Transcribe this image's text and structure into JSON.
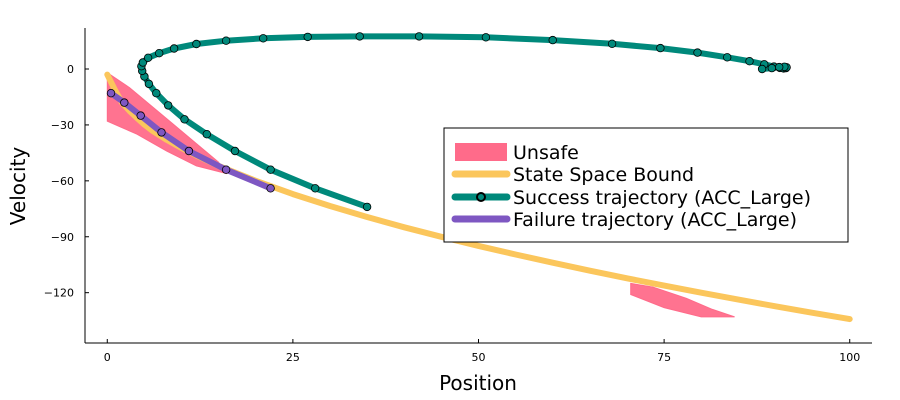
{
  "chart_data": {
    "type": "line",
    "xlabel": "Position",
    "ylabel": "Velocity",
    "xlim": [
      -3,
      103
    ],
    "ylim": [
      -147,
      22
    ],
    "xticks": [
      0,
      25,
      50,
      75,
      100
    ],
    "xtick_labels": [
      "0",
      "25",
      "50",
      "75",
      "100"
    ],
    "yticks": [
      0,
      -30,
      -60,
      -90,
      -120
    ],
    "ytick_labels": [
      "0",
      "−30",
      "−60",
      "−90",
      "−120"
    ],
    "grid": false,
    "legend_position": "right",
    "legend": [
      {
        "label": "Unsafe",
        "kind": "patch",
        "color": "#ff6b8a"
      },
      {
        "label": "State Space Bound",
        "kind": "line",
        "color": "#fbc65c"
      },
      {
        "label": "Success trajectory (ACC_Large)",
        "kind": "line-marker",
        "color": "#00897b"
      },
      {
        "label": "Failure trajectory (ACC_Large)",
        "kind": "line",
        "color": "#7e57c2"
      }
    ],
    "series": [
      {
        "name": "Unsafe",
        "kind": "region",
        "color": "#ff6b8a",
        "polygons": [
          [
            [
              0,
              -2
            ],
            [
              3,
              -10
            ],
            [
              6,
              -20
            ],
            [
              9,
              -30
            ],
            [
              12,
              -40
            ],
            [
              15,
              -50
            ],
            [
              16,
              -56
            ],
            [
              12,
              -52
            ],
            [
              8,
              -44
            ],
            [
              4,
              -35
            ],
            [
              0,
              -28
            ]
          ],
          [
            [
              70.5,
              -115
            ],
            [
              73.5,
              -117
            ],
            [
              78,
              -123
            ],
            [
              81.5,
              -129
            ],
            [
              84.5,
              -133
            ],
            [
              80,
              -133
            ],
            [
              75,
              -128
            ],
            [
              70.5,
              -121
            ]
          ]
        ]
      },
      {
        "name": "State Space Bound",
        "kind": "line",
        "color": "#fbc65c",
        "x": [
          0,
          1,
          2,
          3,
          4,
          5,
          6,
          8,
          10,
          12,
          15,
          20,
          25,
          30,
          35,
          40,
          45,
          50,
          55,
          60,
          65,
          70,
          75,
          80,
          85,
          90,
          95,
          100
        ],
        "y": [
          -3,
          -11,
          -18.2,
          -22.5,
          -26.3,
          -29.8,
          -32.9,
          -38,
          -42.4,
          -46.4,
          -52,
          -60,
          -67.1,
          -73.5,
          -79.4,
          -84.9,
          -90,
          -94.9,
          -99.5,
          -103.9,
          -108.2,
          -112.3,
          -116.2,
          -120,
          -123.7,
          -127.3,
          -130.8,
          -134.2
        ]
      },
      {
        "name": "Success trajectory (ACC_Large)",
        "kind": "line-marker",
        "color": "#00897b",
        "x": [
          35,
          28,
          22,
          17.2,
          13.4,
          10.4,
          8.2,
          6.6,
          5.6,
          5.0,
          4.7,
          4.6,
          4.8,
          5.5,
          7,
          9,
          12,
          16,
          21,
          27,
          34,
          42,
          51,
          60,
          68,
          74.5,
          79.5,
          83.5,
          86.5,
          88.5,
          89.8,
          90.6,
          91.1,
          91.4,
          91.5,
          91.2,
          90.5,
          89.5,
          88.2
        ],
        "y": [
          -74,
          -64,
          -54,
          -44,
          -35,
          -27,
          -19.5,
          -13,
          -8,
          -4,
          -1,
          1.5,
          3.5,
          6,
          8.5,
          11,
          13.4,
          15.2,
          16.5,
          17.2,
          17.5,
          17.5,
          17,
          15.5,
          13.5,
          11.2,
          8.8,
          6.3,
          4.2,
          2.5,
          1.3,
          0.6,
          0.3,
          0.5,
          0.9,
          1.2,
          1.0,
          0.5,
          0
        ]
      },
      {
        "name": "Failure trajectory (ACC_Large)",
        "kind": "line-marker",
        "color": "#7e57c2",
        "x": [
          0.5,
          2.3,
          4.5,
          7.3,
          11,
          16,
          22
        ],
        "y": [
          -13,
          -18,
          -25,
          -34,
          -44,
          -54,
          -64
        ]
      }
    ]
  }
}
